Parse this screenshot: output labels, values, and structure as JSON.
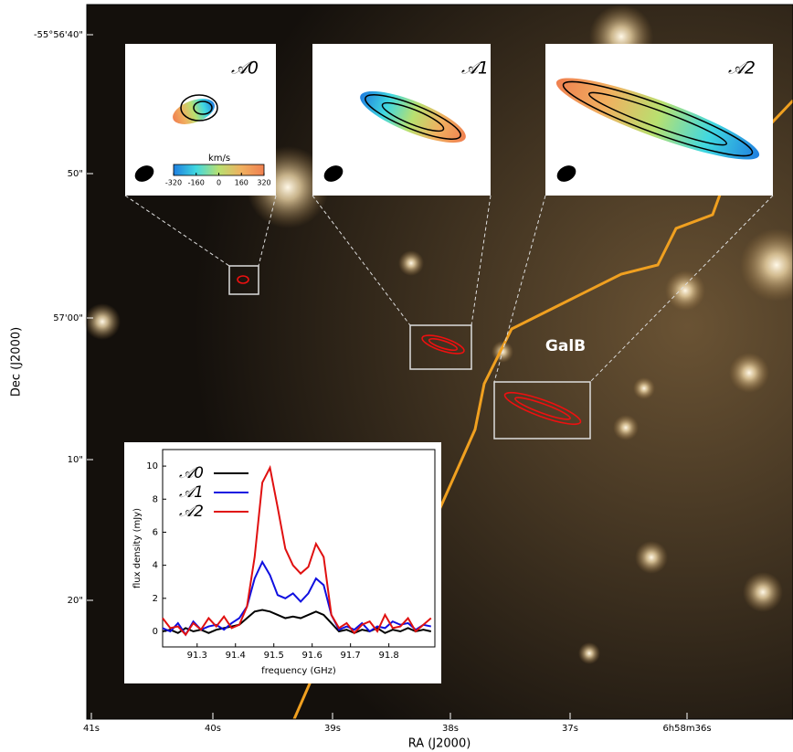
{
  "sky": {
    "x_label": "RA (J2000)",
    "y_label": "Dec (J2000)",
    "x_ticks": [
      "41s",
      "40s",
      "39s",
      "38s",
      "37s",
      "6h58m36s"
    ],
    "y_ticks": [
      "-55°56'40\"",
      "50\"",
      "57'00\"",
      "10\"",
      "20\""
    ],
    "galaxy_label": "GalB"
  },
  "insets": [
    {
      "label": "𝒜0"
    },
    {
      "label": "𝒜1"
    },
    {
      "label": "𝒜2"
    }
  ],
  "colorbar": {
    "title": "km/s",
    "lim": [
      -320,
      320
    ],
    "ticks": [
      -320,
      -160,
      0,
      160,
      320
    ]
  },
  "chart_data": {
    "type": "line",
    "x_label": "frequency (GHz)",
    "y_label": "flux density (mJy)",
    "xlim": [
      91.21,
      91.92
    ],
    "xticks": [
      91.3,
      91.4,
      91.5,
      91.6,
      91.7,
      91.8
    ],
    "ylim": [
      -0.94,
      11
    ],
    "yticks": [
      0,
      2,
      4,
      6,
      8,
      10
    ],
    "legend": "upper left",
    "x": [
      91.21,
      91.23,
      91.25,
      91.27,
      91.29,
      91.31,
      91.33,
      91.35,
      91.37,
      91.39,
      91.41,
      91.43,
      91.45,
      91.47,
      91.49,
      91.51,
      91.53,
      91.55,
      91.57,
      91.59,
      91.61,
      91.63,
      91.65,
      91.67,
      91.69,
      91.71,
      91.73,
      91.75,
      91.77,
      91.79,
      91.81,
      91.83,
      91.85,
      91.87,
      91.89,
      91.91
    ],
    "series": [
      {
        "name": "𝒜0",
        "color": "#000000",
        "values": [
          0,
          0.1,
          -0.1,
          0.2,
          0,
          0.1,
          -0.1,
          0.1,
          0.2,
          0.3,
          0.4,
          0.8,
          1.2,
          1.3,
          1.2,
          1.0,
          0.8,
          0.9,
          0.8,
          1.0,
          1.2,
          1.0,
          0.5,
          0,
          0.1,
          -0.1,
          0.1,
          0,
          0.2,
          -0.1,
          0.1,
          0,
          0.2,
          0,
          0.1,
          0
        ]
      },
      {
        "name": "𝒜1",
        "color": "#1010e0",
        "values": [
          0.2,
          0,
          0.5,
          -0.2,
          0.6,
          0.1,
          0.3,
          0.4,
          0.1,
          0.5,
          0.8,
          1.5,
          3.2,
          4.2,
          3.4,
          2.2,
          2.0,
          2.3,
          1.8,
          2.3,
          3.2,
          2.8,
          1.0,
          0.1,
          0.3,
          0.1,
          0.5,
          0,
          0.3,
          0.2,
          0.6,
          0.4,
          0.5,
          0.1,
          0.4,
          0.3
        ]
      },
      {
        "name": "𝒜2",
        "color": "#e01010",
        "values": [
          0.8,
          0.2,
          0.3,
          -0.2,
          0.5,
          0.1,
          0.8,
          0.3,
          0.9,
          0.2,
          0.4,
          1.5,
          4.5,
          9.0,
          9.9,
          7.5,
          5.0,
          4.0,
          3.5,
          3.9,
          5.3,
          4.5,
          1.0,
          0.2,
          0.5,
          -0.1,
          0.4,
          0.6,
          0,
          1.0,
          0.2,
          0.3,
          0.8,
          0,
          0.4,
          0.8
        ]
      }
    ]
  }
}
